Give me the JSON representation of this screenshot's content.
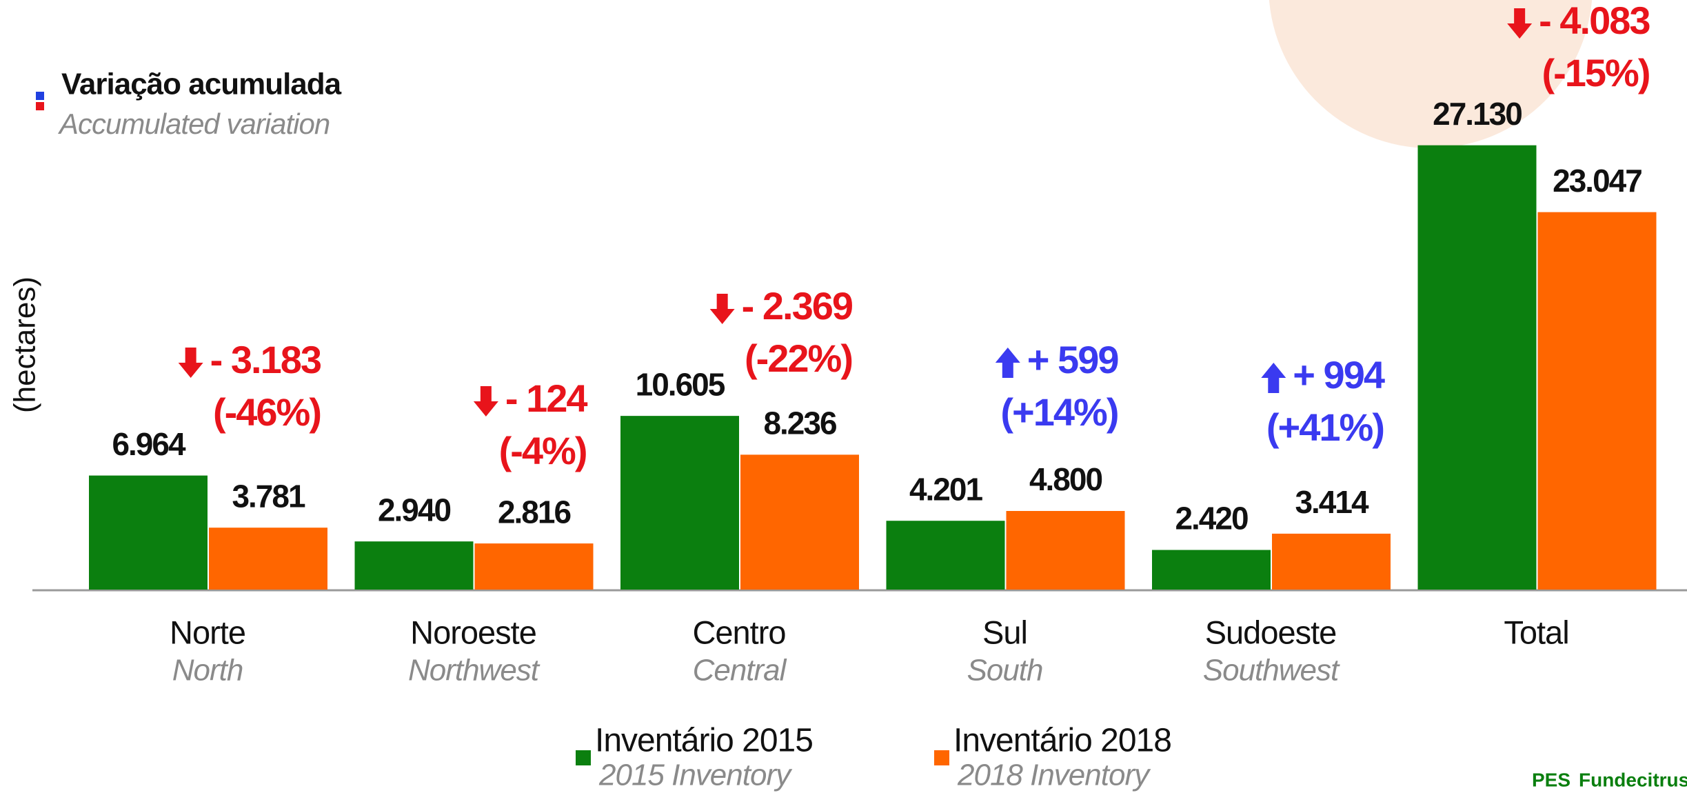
{
  "chart_data": {
    "type": "bar",
    "legend_title": "Variação acumulada",
    "legend_subtitle": "Accumulated variation",
    "y_label": "(hectares)",
    "categories": [
      "Norte",
      "Noroeste",
      "Centro",
      "Sul",
      "Sudoeste",
      "Total"
    ],
    "categories_en": [
      "North",
      "Northwest",
      "Central",
      "South",
      "Southwest",
      null
    ],
    "series": [
      {
        "name": "Inventário 2015",
        "name_en": "2015 Inventory",
        "color": "#0b7f0f",
        "values": [
          6964,
          2940,
          10605,
          4201,
          2420,
          27130
        ],
        "value_labels": [
          "6.964",
          "2.940",
          "10.605",
          "4.201",
          "2.420",
          "27.130"
        ]
      },
      {
        "name": "Inventário 2018",
        "name_en": "2018 Inventory",
        "color": "#ff6600",
        "values": [
          3781,
          2816,
          8236,
          4800,
          3414,
          23047
        ],
        "value_labels": [
          "3.781",
          "2.816",
          "8.236",
          "4.800",
          "3.414",
          "23.047"
        ]
      }
    ],
    "annotations": [
      {
        "change": "- 3.183",
        "pct": "(-46%)",
        "color": "#e8141b"
      },
      {
        "change": "- 124",
        "pct": "(-4%)",
        "color": "#e8141b"
      },
      {
        "change": "- 2.369",
        "pct": "(-22%)",
        "color": "#e8141b"
      },
      {
        "change": "+ 599",
        "pct": "(+14%)",
        "color": "#3a3af0"
      },
      {
        "change": "+ 994",
        "pct": "(+41%)",
        "color": "#3a3af0"
      },
      {
        "change": "- 4.083",
        "pct": "(-15%)",
        "color": "#e8141b"
      }
    ],
    "logo": [
      "PES",
      "Fundecitrus"
    ]
  }
}
